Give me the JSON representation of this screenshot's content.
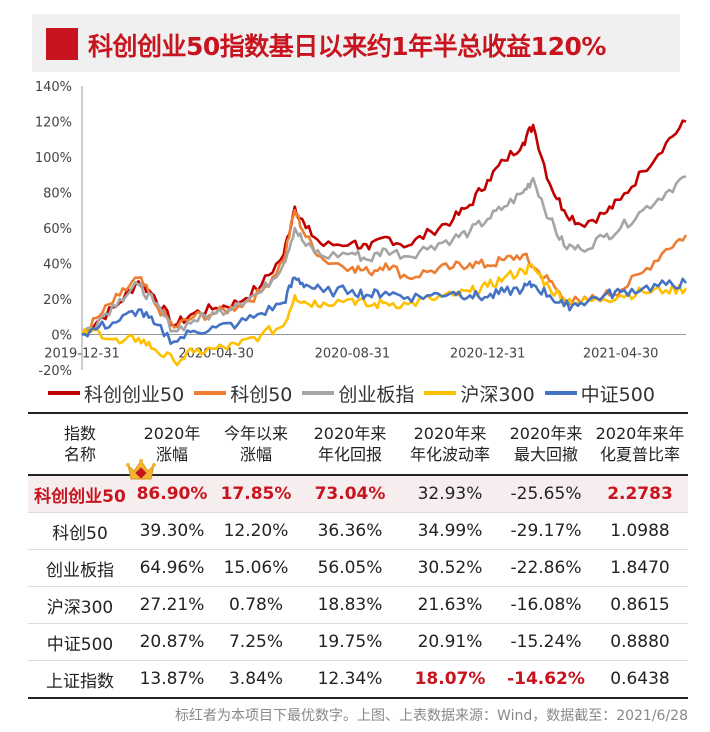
{
  "title": "科创创业50指数基日以来约1年半总收益120%",
  "colors": {
    "accent": "#c8141e",
    "highlight_row": "#f6eeee"
  },
  "icons": [
    "title-square-icon",
    "crown-icon"
  ],
  "chart_data": {
    "type": "line",
    "x_tick_labels": [
      "2019-12-31",
      "2020-04-30",
      "2020-08-31",
      "2020-12-31",
      "2021-04-30"
    ],
    "x_range": [
      "2019-12-31",
      "2021-06-28"
    ],
    "y_ticks": [
      "-20%",
      "0%",
      "20%",
      "40%",
      "60%",
      "80%",
      "100%",
      "120%",
      "140%"
    ],
    "ylim": [
      -20,
      140
    ],
    "y_unit": "%",
    "grid": false,
    "legend_position": "bottom",
    "x": [
      "2019-12-31",
      "2020-01-15",
      "2020-02-03",
      "2020-02-20",
      "2020-03-05",
      "2020-03-23",
      "2020-04-10",
      "2020-04-30",
      "2020-05-20",
      "2020-06-10",
      "2020-06-30",
      "2020-07-10",
      "2020-07-20",
      "2020-08-05",
      "2020-08-31",
      "2020-09-15",
      "2020-09-30",
      "2020-10-20",
      "2020-11-10",
      "2020-11-30",
      "2020-12-15",
      "2020-12-31",
      "2021-01-15",
      "2021-02-01",
      "2021-02-10",
      "2021-02-25",
      "2021-03-10",
      "2021-03-25",
      "2021-04-15",
      "2021-04-30",
      "2021-05-20",
      "2021-06-10",
      "2021-06-28"
    ],
    "series": [
      {
        "name": "科创创业50",
        "color": "#c00000",
        "values": [
          0,
          8,
          18,
          30,
          22,
          5,
          12,
          15,
          18,
          28,
          45,
          72,
          60,
          50,
          52,
          48,
          55,
          50,
          58,
          65,
          73,
          87,
          98,
          108,
          118,
          85,
          70,
          62,
          68,
          76,
          92,
          108,
          120
        ]
      },
      {
        "name": "科创50",
        "color": "#ed7d31",
        "values": [
          0,
          10,
          22,
          32,
          18,
          4,
          10,
          12,
          16,
          24,
          42,
          70,
          55,
          42,
          38,
          35,
          40,
          32,
          36,
          38,
          40,
          39,
          42,
          45,
          38,
          30,
          20,
          18,
          22,
          25,
          35,
          48,
          56
        ]
      },
      {
        "name": "创业板指",
        "color": "#a5a5a5",
        "values": [
          0,
          8,
          20,
          28,
          18,
          2,
          8,
          12,
          18,
          24,
          40,
          60,
          50,
          44,
          46,
          42,
          48,
          44,
          50,
          54,
          58,
          65,
          72,
          80,
          88,
          65,
          50,
          48,
          55,
          60,
          70,
          80,
          89
        ]
      },
      {
        "name": "沪深300",
        "color": "#ffc000",
        "values": [
          0,
          2,
          -5,
          -2,
          -8,
          -15,
          -10,
          -8,
          -6,
          0,
          5,
          22,
          18,
          18,
          20,
          16,
          18,
          17,
          20,
          22,
          24,
          27,
          32,
          36,
          38,
          26,
          20,
          18,
          20,
          22,
          24,
          25,
          26
        ]
      },
      {
        "name": "中证500",
        "color": "#4472c4",
        "values": [
          0,
          4,
          8,
          14,
          6,
          -4,
          2,
          4,
          6,
          12,
          18,
          32,
          28,
          24,
          25,
          22,
          24,
          21,
          22,
          24,
          22,
          21,
          24,
          26,
          28,
          22,
          16,
          18,
          22,
          24,
          26,
          28,
          29
        ]
      }
    ]
  },
  "table": {
    "headers": [
      {
        "l1": "指数",
        "l2": "名称"
      },
      {
        "l1": "2020年",
        "l2": "涨幅"
      },
      {
        "l1": "今年以来",
        "l2": "涨幅"
      },
      {
        "l1": "2020年来",
        "l2": "年化回报"
      },
      {
        "l1": "2020年来",
        "l2": "年化波动率"
      },
      {
        "l1": "2020年来",
        "l2": "最大回撤"
      },
      {
        "l1": "2020年来年",
        "l2": "化夏普比率"
      }
    ],
    "rows": [
      [
        "科创创业50",
        "86.90%",
        "17.85%",
        "73.04%",
        "32.93%",
        "-25.65%",
        "2.2783"
      ],
      [
        "科创50",
        "39.30%",
        "12.20%",
        "36.36%",
        "34.99%",
        "-29.17%",
        "1.0988"
      ],
      [
        "创业板指",
        "64.96%",
        "15.06%",
        "56.05%",
        "30.52%",
        "-22.86%",
        "1.8470"
      ],
      [
        "沪深300",
        "27.21%",
        "0.78%",
        "18.83%",
        "21.63%",
        "-16.08%",
        "0.8615"
      ],
      [
        "中证500",
        "20.87%",
        "7.25%",
        "19.75%",
        "20.91%",
        "-15.24%",
        "0.8880"
      ],
      [
        "上证指数",
        "13.87%",
        "3.84%",
        "12.34%",
        "18.07%",
        "-14.62%",
        "0.6438"
      ]
    ],
    "highlighted": [
      [
        0,
        0
      ],
      [
        0,
        1
      ],
      [
        0,
        2
      ],
      [
        0,
        3
      ],
      [
        0,
        6
      ],
      [
        5,
        4
      ],
      [
        5,
        5
      ]
    ]
  },
  "footnote": "标红者为本项目下最优数字。上图、上表数据来源：Wind，数据截至：2021/6/28"
}
